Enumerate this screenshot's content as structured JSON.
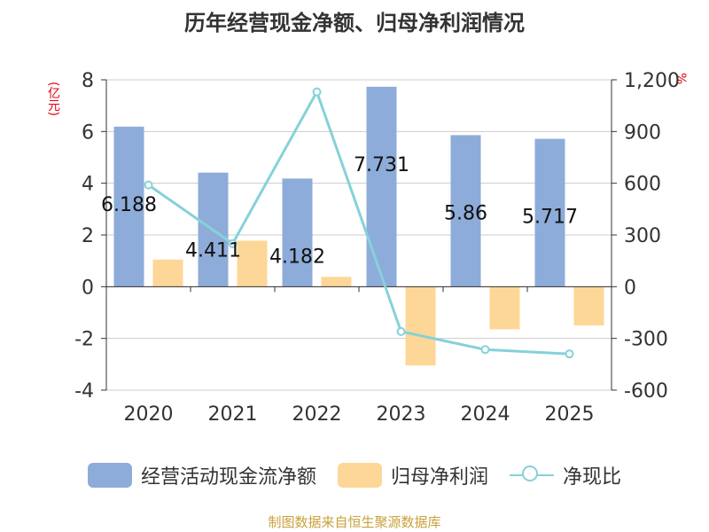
{
  "colors": {
    "cash": "#8eacd9",
    "profit": "#fdd797",
    "ratio": "#86d1d9",
    "axis": "#333333",
    "grid": "#cccccc",
    "unit": "#e60012",
    "source": "#c9a13a"
  },
  "chart_data": {
    "type": "bar",
    "title": "历年经营现金净额、归母净利润情况",
    "left_unit": "(亿元)",
    "right_unit": "%",
    "categories": [
      "2020",
      "2021",
      "2022",
      "2023",
      "2024",
      "2025"
    ],
    "y_left": {
      "min": -4,
      "max": 8,
      "ticks": [
        "8",
        "6",
        "4",
        "2",
        "0",
        "-2",
        "-4"
      ]
    },
    "y_right": {
      "min": -600,
      "max": 1200,
      "ticks": [
        "1,200",
        "900",
        "600",
        "300",
        "0",
        "-300",
        "-600"
      ]
    },
    "series": [
      {
        "name": "经营活动现金流净额",
        "kind": "bar",
        "axis": "left",
        "values": [
          6.188,
          4.411,
          4.182,
          7.731,
          5.86,
          5.717
        ],
        "labels": [
          "6.188",
          "4.411",
          "4.182",
          "7.731",
          "5.86",
          "5.717"
        ]
      },
      {
        "name": "归母净利润",
        "kind": "bar",
        "axis": "left",
        "values": [
          1.05,
          1.78,
          0.38,
          -3.05,
          -1.65,
          -1.5
        ]
      },
      {
        "name": "净现比",
        "kind": "line",
        "axis": "right",
        "values": [
          590,
          250,
          1130,
          -260,
          -365,
          -390
        ]
      }
    ]
  },
  "legend": {
    "cash_label": "经营活动现金流净额",
    "profit_label": "归母净利润",
    "ratio_label": "净现比"
  },
  "source": "制图数据来自恒生聚源数据库"
}
